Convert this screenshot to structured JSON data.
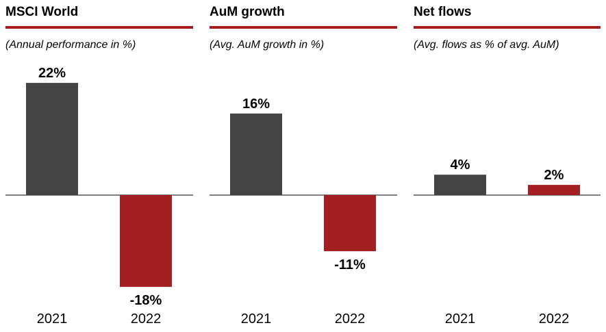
{
  "colors": {
    "accent": "#a31f22",
    "bar_2021": "#444444",
    "bar_2022": "#a31f22",
    "axis": "#000000"
  },
  "chart_data": [
    {
      "type": "bar",
      "title": "MSCI World",
      "subtitle": "(Annual performance in %)",
      "categories": [
        "2021",
        "2022"
      ],
      "values": [
        22,
        -18
      ],
      "value_labels": [
        "22%",
        "-18%"
      ],
      "ylim": [
        -22,
        26
      ]
    },
    {
      "type": "bar",
      "title": "AuM growth",
      "subtitle": "(Avg. AuM growth in %)",
      "categories": [
        "2021",
        "2022"
      ],
      "values": [
        16,
        -11
      ],
      "value_labels": [
        "16%",
        "-11%"
      ],
      "ylim": [
        -22,
        26
      ]
    },
    {
      "type": "bar",
      "title": "Net flows",
      "subtitle": "(Avg. flows as % of avg. AuM)",
      "categories": [
        "2021",
        "2022"
      ],
      "values": [
        4,
        2
      ],
      "value_labels": [
        "4%",
        "2%"
      ],
      "ylim": [
        -22,
        26
      ]
    }
  ]
}
